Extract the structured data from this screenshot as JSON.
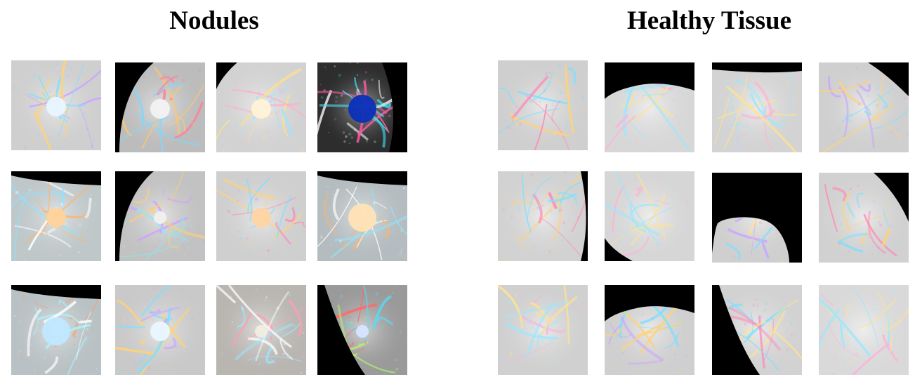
{
  "panels": [
    {
      "title": "Nodules",
      "tiles": [
        {
          "name": "nodule-patch-1",
          "bg": "#cfcfcf",
          "mask": "none",
          "spot": "#e9f6ff",
          "spotSize": "medium",
          "veins": [
            "#ffd27a",
            "#7ee0ff",
            "#c9a6ff"
          ]
        },
        {
          "name": "nodule-patch-2",
          "bg": "#bcbcbc",
          "mask": "left-curve",
          "spot": "#f2f2f2",
          "spotSize": "medium",
          "veins": [
            "#ffc86b",
            "#7fd8ff",
            "#ff7f9a"
          ]
        },
        {
          "name": "nodule-patch-3",
          "bg": "#d2d2d2",
          "mask": "top-left",
          "spot": "#fff3d8",
          "spotSize": "medium",
          "veins": [
            "#ffe08a",
            "#96e6ff",
            "#ffb0c9"
          ]
        },
        {
          "name": "nodule-patch-4",
          "bg": "#2d2d2d",
          "mask": "right-strip",
          "spot": "#0b2fb8",
          "spotSize": "large",
          "veins": [
            "#3df0ff",
            "#ffffff",
            "#ff5aa6"
          ]
        },
        {
          "name": "nodule-patch-5",
          "bg": "#bfc7c9",
          "mask": "top-corner",
          "spot": "#ffd39a",
          "spotSize": "medium",
          "veins": [
            "#ffffff",
            "#8fe3ff",
            "#ffb36b"
          ]
        },
        {
          "name": "nodule-patch-6",
          "bg": "#c2c2c2",
          "mask": "left-curve",
          "spot": "#f0f0f0",
          "spotSize": "small",
          "veins": [
            "#ffcf76",
            "#7cf0ff",
            "#d1a0ff"
          ]
        },
        {
          "name": "nodule-patch-7",
          "bg": "#cfcfcf",
          "mask": "none",
          "spot": "#ffd4a3",
          "spotSize": "medium",
          "veins": [
            "#ffd27a",
            "#7ee0ff",
            "#ff88b8"
          ]
        },
        {
          "name": "nodule-patch-8",
          "bg": "#b5bcbf",
          "mask": "top-corner",
          "spot": "#ffe3b5",
          "spotSize": "large",
          "veins": [
            "#ffffff",
            "#8fe3ff",
            "#ffb36b"
          ]
        },
        {
          "name": "nodule-patch-9",
          "bg": "#b9c1c4",
          "mask": "top-corner",
          "spot": "#bfe8ff",
          "spotSize": "large",
          "veins": [
            "#ffffff",
            "#a6f2ff",
            "#ff9d6b"
          ]
        },
        {
          "name": "nodule-patch-10",
          "bg": "#c9c9c9",
          "mask": "none",
          "spot": "#eaf7ff",
          "spotSize": "medium",
          "veins": [
            "#ffd27a",
            "#7ee0ff",
            "#c9a6ff"
          ]
        },
        {
          "name": "nodule-patch-11",
          "bg": "#b9b6b2",
          "mask": "none",
          "spot": "#f2ede3",
          "spotSize": "small",
          "veins": [
            "#ffffff",
            "#9ae6ff",
            "#ff9eb0"
          ]
        },
        {
          "name": "nodule-patch-12",
          "bg": "#9a9a9a",
          "mask": "left-band",
          "spot": "#d6e6ff",
          "spotSize": "small",
          "veins": [
            "#4fe0ff",
            "#ff6a6a",
            "#b5ff6a"
          ]
        }
      ]
    },
    {
      "title": "Healthy Tissue",
      "tiles": [
        {
          "name": "healthy-patch-1",
          "bg": "#cfcfcf",
          "mask": "none",
          "spot": "",
          "spotSize": "none",
          "veins": [
            "#ffd27a",
            "#7ee0ff",
            "#ff88b8"
          ]
        },
        {
          "name": "healthy-patch-2",
          "bg": "#d7d7d7",
          "mask": "top-band",
          "spot": "",
          "spotSize": "none",
          "veins": [
            "#ffe28f",
            "#9be7ff",
            "#ffb1d6"
          ]
        },
        {
          "name": "healthy-patch-3",
          "bg": "#d3d3d3",
          "mask": "top-thin",
          "spot": "",
          "spotSize": "none",
          "veins": [
            "#ffe28f",
            "#9be7ff",
            "#ffb1d6"
          ]
        },
        {
          "name": "healthy-patch-4",
          "bg": "#cfcfcf",
          "mask": "top-right",
          "spot": "",
          "spotSize": "none",
          "veins": [
            "#ffd27a",
            "#7ee0ff",
            "#c9a6ff"
          ]
        },
        {
          "name": "healthy-patch-5",
          "bg": "#d2d2d2",
          "mask": "right-curve",
          "spot": "",
          "spotSize": "none",
          "veins": [
            "#ffd27a",
            "#7ee0ff",
            "#ff88b8"
          ]
        },
        {
          "name": "healthy-patch-6",
          "bg": "#d6d6d6",
          "mask": "left-bottom",
          "spot": "",
          "spotSize": "none",
          "veins": [
            "#ffe28f",
            "#9be7ff",
            "#ffb1d6"
          ]
        },
        {
          "name": "healthy-patch-7",
          "bg": "#cfcfcf",
          "mask": "lower-lobe",
          "spot": "",
          "spotSize": "none",
          "veins": [
            "#ffe28f",
            "#7ee0ff",
            "#c9a6ff"
          ]
        },
        {
          "name": "healthy-patch-8",
          "bg": "#d1d1d1",
          "mask": "top-right-lower",
          "spot": "",
          "spotSize": "none",
          "veins": [
            "#ffd27a",
            "#7ee0ff",
            "#ff88b8"
          ]
        },
        {
          "name": "healthy-patch-9",
          "bg": "#d0d0d0",
          "mask": "none",
          "spot": "",
          "spotSize": "none",
          "veins": [
            "#ffe28f",
            "#9be7ff",
            "#ffb1d6"
          ]
        },
        {
          "name": "healthy-patch-10",
          "bg": "#cfcfcf",
          "mask": "top-band",
          "spot": "",
          "spotSize": "none",
          "veins": [
            "#ffd27a",
            "#7ee0ff",
            "#c9a6ff"
          ]
        },
        {
          "name": "healthy-patch-11",
          "bg": "#d2d2d2",
          "mask": "left-band",
          "spot": "",
          "spotSize": "none",
          "veins": [
            "#ffe28f",
            "#7ee0ff",
            "#ff88b8"
          ]
        },
        {
          "name": "healthy-patch-12",
          "bg": "#d9d9d9",
          "mask": "none",
          "spot": "",
          "spotSize": "none",
          "veins": [
            "#ffe28f",
            "#9be7ff",
            "#ffb1d6"
          ]
        }
      ]
    }
  ]
}
